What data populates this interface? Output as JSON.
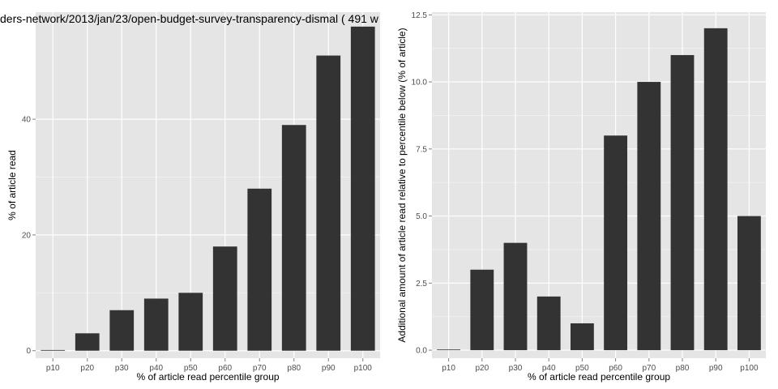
{
  "colors": {
    "panel": "#e5e5e5",
    "grid_major": "#ffffff",
    "grid_minor": "#f2f2f2",
    "bar": "#333333"
  },
  "chart_data": [
    {
      "type": "bar",
      "title": "ders-network/2013/jan/23/open-budget-survey-transparency-dismal ( 491 w",
      "xlabel": "% of article read percentile group",
      "ylabel": "% of article read",
      "categories": [
        "p10",
        "p20",
        "p30",
        "p40",
        "p50",
        "p60",
        "p70",
        "p80",
        "p90",
        "p100"
      ],
      "values": [
        0,
        3,
        7,
        9,
        10,
        18,
        28,
        39,
        51,
        56
      ],
      "ylim": [
        0,
        56
      ],
      "yticks": [
        0,
        20,
        40
      ],
      "ytick_labels": [
        "0",
        "20",
        "40"
      ],
      "grid": true
    },
    {
      "type": "bar",
      "title": "",
      "xlabel": "% of article read percentile group",
      "ylabel": "Additional amount of article read relative to percentile below (% of article)",
      "categories": [
        "p10",
        "p20",
        "p30",
        "p40",
        "p50",
        "p60",
        "p70",
        "p80",
        "p90",
        "p100"
      ],
      "values": [
        0,
        3,
        4,
        2,
        1,
        8,
        10,
        11,
        12,
        5
      ],
      "ylim": [
        0,
        12
      ],
      "yticks": [
        0,
        2.5,
        5,
        7.5,
        10,
        12.5
      ],
      "ytick_labels": [
        "0.0",
        "2.5",
        "5.0",
        "7.5",
        "10.0",
        "12.5"
      ],
      "grid": true
    }
  ]
}
